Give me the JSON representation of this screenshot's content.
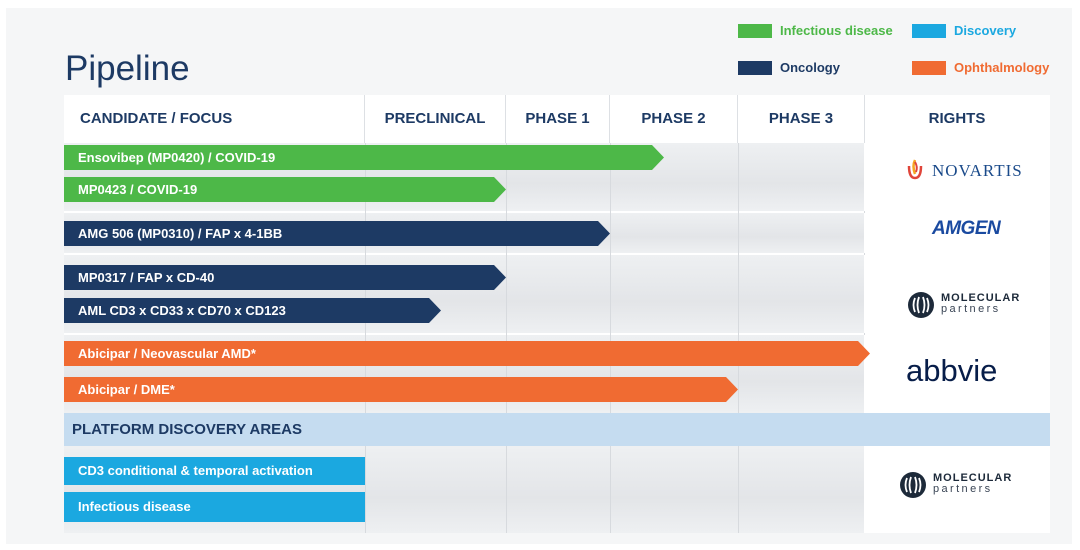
{
  "title": "Pipeline",
  "legend": [
    {
      "label": "Infectious disease",
      "color": "#4db848"
    },
    {
      "label": "Discovery",
      "color": "#1ba8e0"
    },
    {
      "label": "Oncology",
      "color": "#1d3a64"
    },
    {
      "label": "Ophthalmology",
      "color": "#f06b32"
    }
  ],
  "headers": [
    "CANDIDATE / FOCUS",
    "PRECLINICAL",
    "PHASE 1",
    "PHASE 2",
    "PHASE 3",
    "RIGHTS"
  ],
  "programs": [
    {
      "label": "Ensovibep (MP0420) / COVID-19",
      "category": "Infectious disease",
      "progress": "Phase 2"
    },
    {
      "label": "MP0423 / COVID-19",
      "category": "Infectious disease",
      "progress": "Preclinical"
    },
    {
      "label": "AMG 506 (MP0310) / FAP x 4-1BB",
      "category": "Oncology",
      "progress": "Phase 1"
    },
    {
      "label": "MP0317 / FAP x CD-40",
      "category": "Oncology",
      "progress": "Preclinical"
    },
    {
      "label": "AML CD3 x CD33 x CD70 x CD123",
      "category": "Oncology",
      "progress": "Preclinical"
    },
    {
      "label": "Abicipar / Neovascular AMD*",
      "category": "Ophthalmology",
      "progress": "Phase 3"
    },
    {
      "label": "Abicipar / DME*",
      "category": "Ophthalmology",
      "progress": "Phase 2"
    }
  ],
  "platform": {
    "title": "PLATFORM DISCOVERY AREAS",
    "items": [
      {
        "label": "CD3 conditional & temporal activation",
        "category": "Discovery"
      },
      {
        "label": "Infectious disease",
        "category": "Discovery"
      }
    ]
  },
  "rights": {
    "novartis": "NOVARTIS",
    "amgen": "AMGEN",
    "mp_line1": "MOLECULAR",
    "mp_line2": "partners",
    "abbvie": "abbvie"
  }
}
